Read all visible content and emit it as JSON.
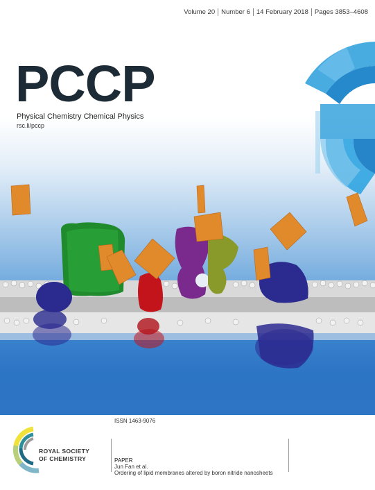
{
  "journal": {
    "title": "PCCP",
    "subtitle": "Physical Chemistry Chemical Physics",
    "url": "rsc.li/pccp"
  },
  "issue": {
    "volume": "Volume 20",
    "number": "Number 6",
    "date": "14 February 2018",
    "pages": "Pages 3853–4608"
  },
  "footer": {
    "issn": "ISSN 1463-9076",
    "publisher_line1": "ROYAL SOCIETY",
    "publisher_line2": "OF CHEMISTRY",
    "paper_label": "PAPER",
    "paper_authors": "Jun Fan et al.",
    "paper_title": "Ordering of lipid membranes altered by boron nitride nanosheets"
  },
  "colors": {
    "title": "#1d2b36",
    "accent_blue": "#2e75c5",
    "nanosheet": "#e08a2c",
    "green_protein": "#1f8b2d",
    "red_protein": "#c3141b",
    "purple_protein": "#7a2a8c",
    "navy_protein": "#2b2a8f"
  }
}
